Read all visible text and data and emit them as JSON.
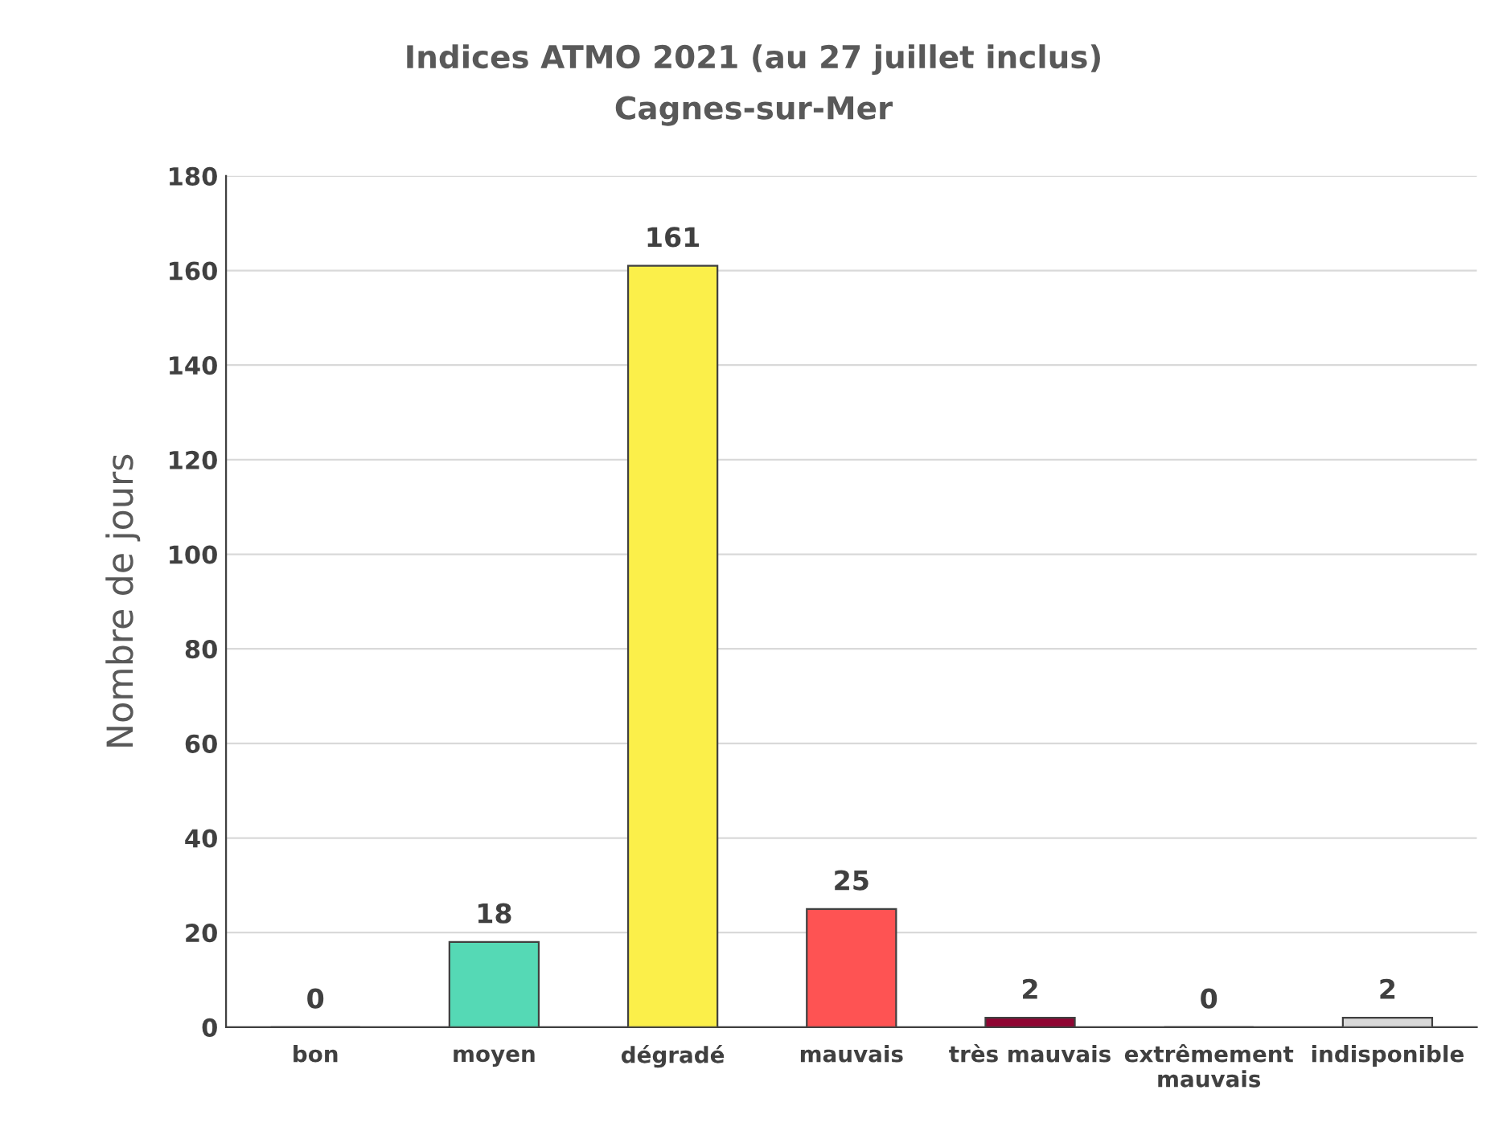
{
  "chart_data": {
    "type": "bar",
    "title": "Indices ATMO 2021 (au 27 juillet inclus)",
    "subtitle": "Cagnes-sur-Mer",
    "ylabel": "Nombre de jours",
    "categories": [
      "bon",
      "moyen",
      "dégradé",
      "mauvais",
      "très mauvais",
      "extrêmement mauvais",
      "indisponible"
    ],
    "values": [
      0,
      18,
      161,
      25,
      2,
      0,
      2
    ],
    "colors": [
      "#50f0e6",
      "#55d9b5",
      "#fbef4a",
      "#fe5353",
      "#8f0533",
      "#872181",
      "#d9d9d9"
    ],
    "ylim": [
      0,
      180
    ],
    "yticks": [
      0,
      20,
      40,
      60,
      80,
      100,
      120,
      140,
      160,
      180
    ],
    "grid": "y",
    "data_labels": true
  }
}
